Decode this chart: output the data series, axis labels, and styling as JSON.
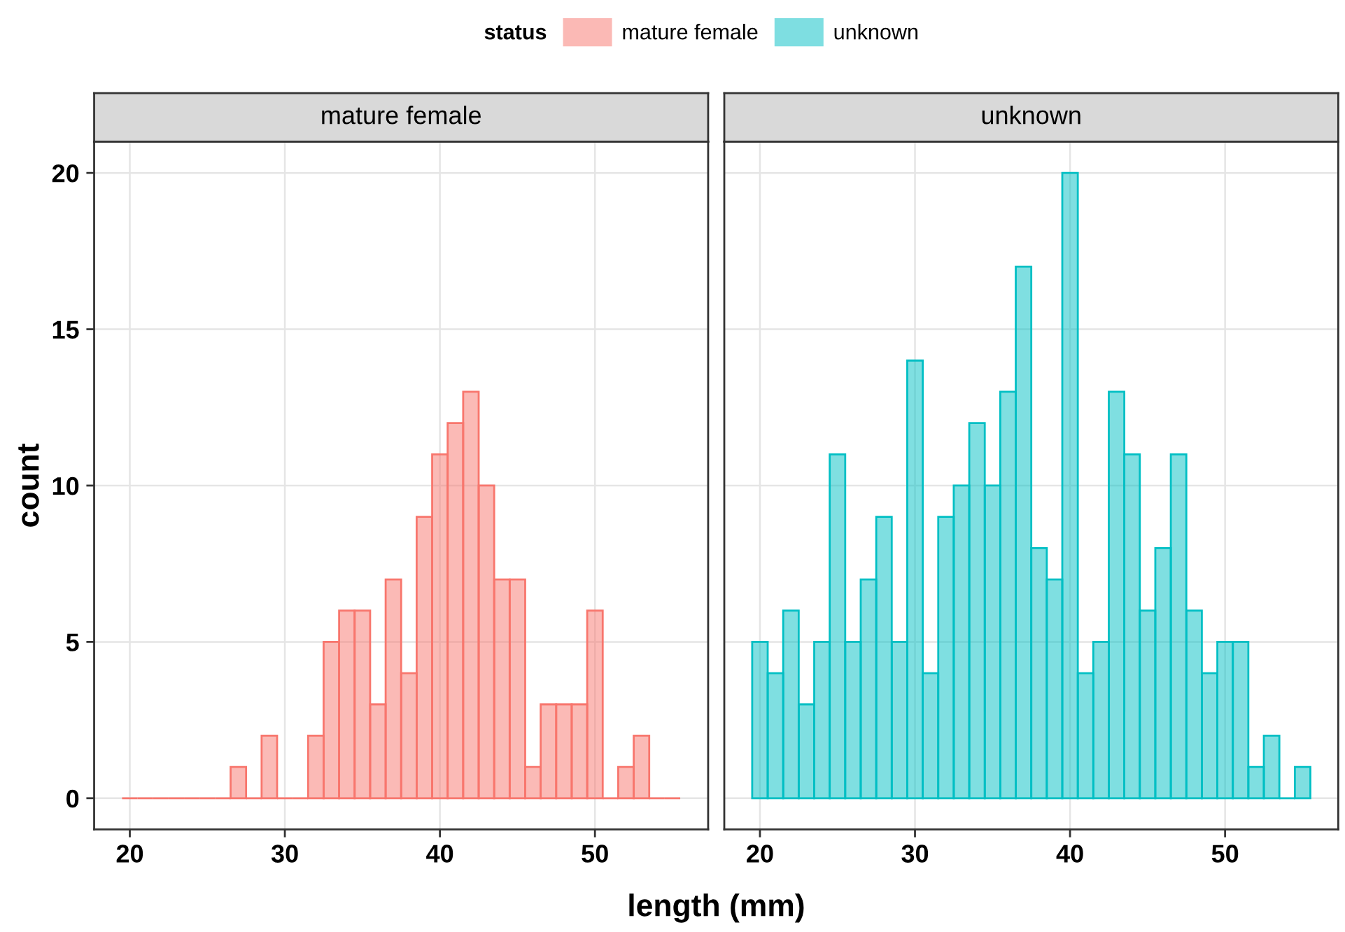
{
  "chart_data": [
    {
      "type": "histogram",
      "title": "mature female",
      "xlabel": "length (mm)",
      "ylabel": "count",
      "legend_title": "status",
      "legend": "top",
      "bins": [
        19.5,
        20.5,
        21.5,
        22.5,
        23.5,
        24.5,
        25.5,
        26.5,
        27.5,
        28.5,
        29.5,
        30.5,
        31.5,
        32.5,
        33.5,
        34.5,
        35.5,
        36.5,
        37.5,
        38.5,
        39.5,
        40.5,
        41.5,
        42.5,
        43.5,
        44.5,
        45.5,
        46.5,
        47.5,
        48.5,
        49.5,
        50.5,
        51.5,
        52.5,
        53.5,
        54.5,
        55.5
      ],
      "series": [
        {
          "name": "mature female",
          "color": "#f8766d",
          "values": [
            0,
            0,
            0,
            0,
            0,
            0,
            0,
            1,
            0,
            2,
            0,
            0,
            2,
            5,
            6,
            6,
            3,
            7,
            4,
            9,
            11,
            12,
            13,
            10,
            7,
            7,
            1,
            3,
            3,
            3,
            6,
            0,
            1,
            2,
            0,
            0
          ]
        }
      ],
      "xlim": [
        17.7,
        57.3
      ],
      "xticks": [
        20,
        30,
        40,
        50
      ],
      "ylim": [
        -1,
        21
      ],
      "yticks": [
        0,
        5,
        10,
        15,
        20
      ],
      "grid": true
    },
    {
      "type": "histogram",
      "title": "unknown",
      "legend": "top",
      "tick_labels": "x",
      "bins": [
        19.5,
        20.5,
        21.5,
        22.5,
        23.5,
        24.5,
        25.5,
        26.5,
        27.5,
        28.5,
        29.5,
        30.5,
        31.5,
        32.5,
        33.5,
        34.5,
        35.5,
        36.5,
        37.5,
        38.5,
        39.5,
        40.5,
        41.5,
        42.5,
        43.5,
        44.5,
        45.5,
        46.5,
        47.5,
        48.5,
        49.5,
        50.5,
        51.5,
        52.5,
        53.5,
        54.5,
        55.5
      ],
      "series": [
        {
          "name": "unknown",
          "color": "#00bfc4",
          "values": [
            5,
            4,
            6,
            3,
            5,
            11,
            5,
            7,
            9,
            5,
            14,
            4,
            9,
            10,
            12,
            10,
            13,
            17,
            8,
            7,
            20,
            4,
            5,
            13,
            11,
            6,
            8,
            11,
            6,
            4,
            5,
            5,
            1,
            2,
            0,
            1
          ]
        }
      ],
      "xlim": [
        17.7,
        57.3
      ],
      "xticks": [
        20,
        30,
        40,
        50
      ],
      "ylim": [
        -1,
        21
      ],
      "yticks": [
        0,
        5,
        10,
        15,
        20
      ],
      "grid": true
    }
  ]
}
